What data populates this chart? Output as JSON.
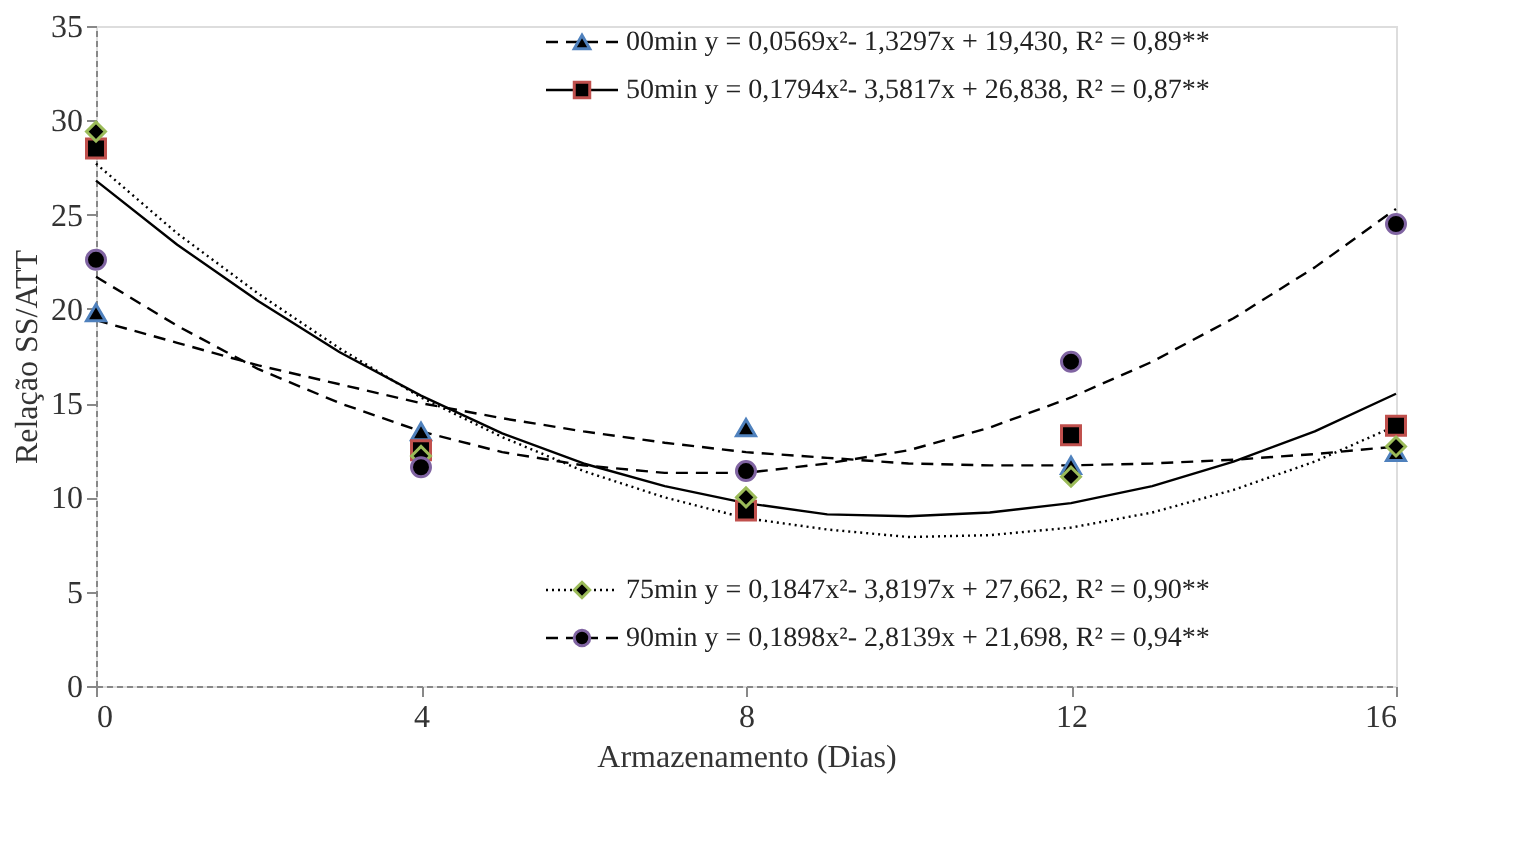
{
  "chart_data": {
    "type": "scatter",
    "xlabel": "Armazenamento (Dias)",
    "ylabel": "Relação SS/ATT",
    "xlim": [
      0,
      16
    ],
    "xticks": [
      0,
      4,
      8,
      12,
      16
    ],
    "ylim": [
      0,
      35
    ],
    "yticks": [
      0,
      5,
      10,
      15,
      20,
      25,
      30,
      35
    ],
    "grid": false,
    "legend": "right",
    "series": [
      {
        "name": "00min y = 0,0569x²- 1,3297x + 19,430, R² = 0,89**",
        "marker": "triangle",
        "color": "#4f81bd",
        "x": [
          0,
          4,
          8,
          12,
          16
        ],
        "values": [
          19.8,
          13.5,
          13.7,
          11.7,
          12.4
        ]
      },
      {
        "name": "50min y = 0,1794x²- 3,5817x + 26,838, R² = 0,87**",
        "marker": "square",
        "color": "#c0504d",
        "x": [
          0,
          4,
          8,
          12,
          16
        ],
        "values": [
          28.5,
          12.5,
          9.3,
          13.3,
          13.8
        ]
      },
      {
        "name": "75min y = 0,1847x²- 3,8197x + 27,662, R² = 0,90**",
        "marker": "diamond",
        "color": "#9bbb59",
        "x": [
          0,
          4,
          8,
          12,
          16
        ],
        "values": [
          29.4,
          12.2,
          10.0,
          11.1,
          12.7
        ]
      },
      {
        "name": "90min y = 0,1898x²- 2,8139x + 21,698, R² = 0,94**",
        "marker": "circle",
        "color": "#8064a2",
        "x": [
          0,
          4,
          8,
          12,
          16
        ],
        "values": [
          22.6,
          11.6,
          11.4,
          17.2,
          24.5
        ]
      },
      {
        "type": "line",
        "line_style": "dashed",
        "color": "#000000",
        "x": [
          0,
          1,
          2,
          3,
          4,
          5,
          6,
          7,
          8,
          9,
          10,
          11,
          12,
          13,
          14,
          15,
          16
        ],
        "values": [
          19.4,
          18.2,
          17.0,
          16.0,
          15.0,
          14.2,
          13.5,
          12.9,
          12.4,
          12.1,
          11.8,
          11.7,
          11.7,
          11.8,
          12.0,
          12.3,
          12.7
        ]
      },
      {
        "type": "line",
        "line_style": "solid",
        "color": "#000000",
        "x": [
          0,
          1,
          2,
          3,
          4,
          5,
          6,
          7,
          8,
          9,
          10,
          11,
          12,
          13,
          14,
          15,
          16
        ],
        "values": [
          26.8,
          23.4,
          20.4,
          17.7,
          15.4,
          13.4,
          11.8,
          10.6,
          9.7,
          9.1,
          9.0,
          9.2,
          9.7,
          10.6,
          11.9,
          13.5,
          15.5
        ]
      },
      {
        "type": "line",
        "line_style": "dotted",
        "color": "#000000",
        "x": [
          0,
          1,
          2,
          3,
          4,
          5,
          6,
          7,
          8,
          9,
          10,
          11,
          12,
          13,
          14,
          15,
          16
        ],
        "values": [
          27.7,
          24.0,
          20.8,
          17.9,
          15.3,
          13.2,
          11.4,
          10.0,
          8.9,
          8.3,
          7.9,
          8.0,
          8.4,
          9.2,
          10.4,
          11.9,
          13.8
        ]
      },
      {
        "type": "line",
        "line_style": "dashed",
        "color": "#000000",
        "x": [
          0,
          1,
          2,
          3,
          4,
          5,
          6,
          7,
          8,
          9,
          10,
          11,
          12,
          13,
          14,
          15,
          16
        ],
        "values": [
          21.7,
          19.1,
          16.8,
          15.0,
          13.5,
          12.4,
          11.7,
          11.3,
          11.3,
          11.8,
          12.5,
          13.7,
          15.3,
          17.2,
          19.5,
          22.2,
          25.3
        ]
      }
    ]
  }
}
